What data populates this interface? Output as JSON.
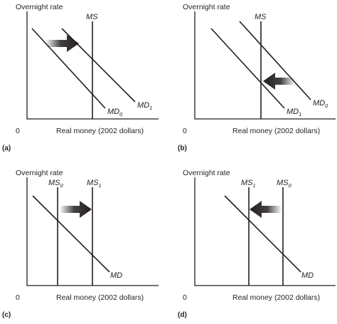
{
  "chart_data": [
    {
      "type": "line",
      "panel": "(a)",
      "ylabel": "Overnight rate",
      "xlabel": "Real money (2002 dollars)",
      "origin_label": "0",
      "supply": [
        {
          "name": "MS",
          "sub": ""
        }
      ],
      "demand": [
        {
          "name": "MD",
          "sub": "0"
        },
        {
          "name": "MD",
          "sub": "1"
        }
      ],
      "shift": "demand-right"
    },
    {
      "type": "line",
      "panel": "(b)",
      "ylabel": "Overnight rate",
      "xlabel": "Real money (2002 dollars)",
      "origin_label": "0",
      "supply": [
        {
          "name": "MS",
          "sub": ""
        }
      ],
      "demand": [
        {
          "name": "MD",
          "sub": "0"
        },
        {
          "name": "MD",
          "sub": "1"
        }
      ],
      "shift": "demand-left"
    },
    {
      "type": "line",
      "panel": "(c)",
      "ylabel": "Overnight rate",
      "xlabel": "Real money (2002 dollars)",
      "origin_label": "0",
      "supply": [
        {
          "name": "MS",
          "sub": "0"
        },
        {
          "name": "MS",
          "sub": "1"
        }
      ],
      "demand": [
        {
          "name": "MD",
          "sub": ""
        }
      ],
      "shift": "supply-right"
    },
    {
      "type": "line",
      "panel": "(d)",
      "ylabel": "Overnight rate",
      "xlabel": "Real money (2002 dollars)",
      "origin_label": "0",
      "supply": [
        {
          "name": "MS",
          "sub": "1"
        },
        {
          "name": "MS",
          "sub": "0"
        }
      ],
      "demand": [
        {
          "name": "MD",
          "sub": ""
        }
      ],
      "shift": "supply-left"
    }
  ]
}
